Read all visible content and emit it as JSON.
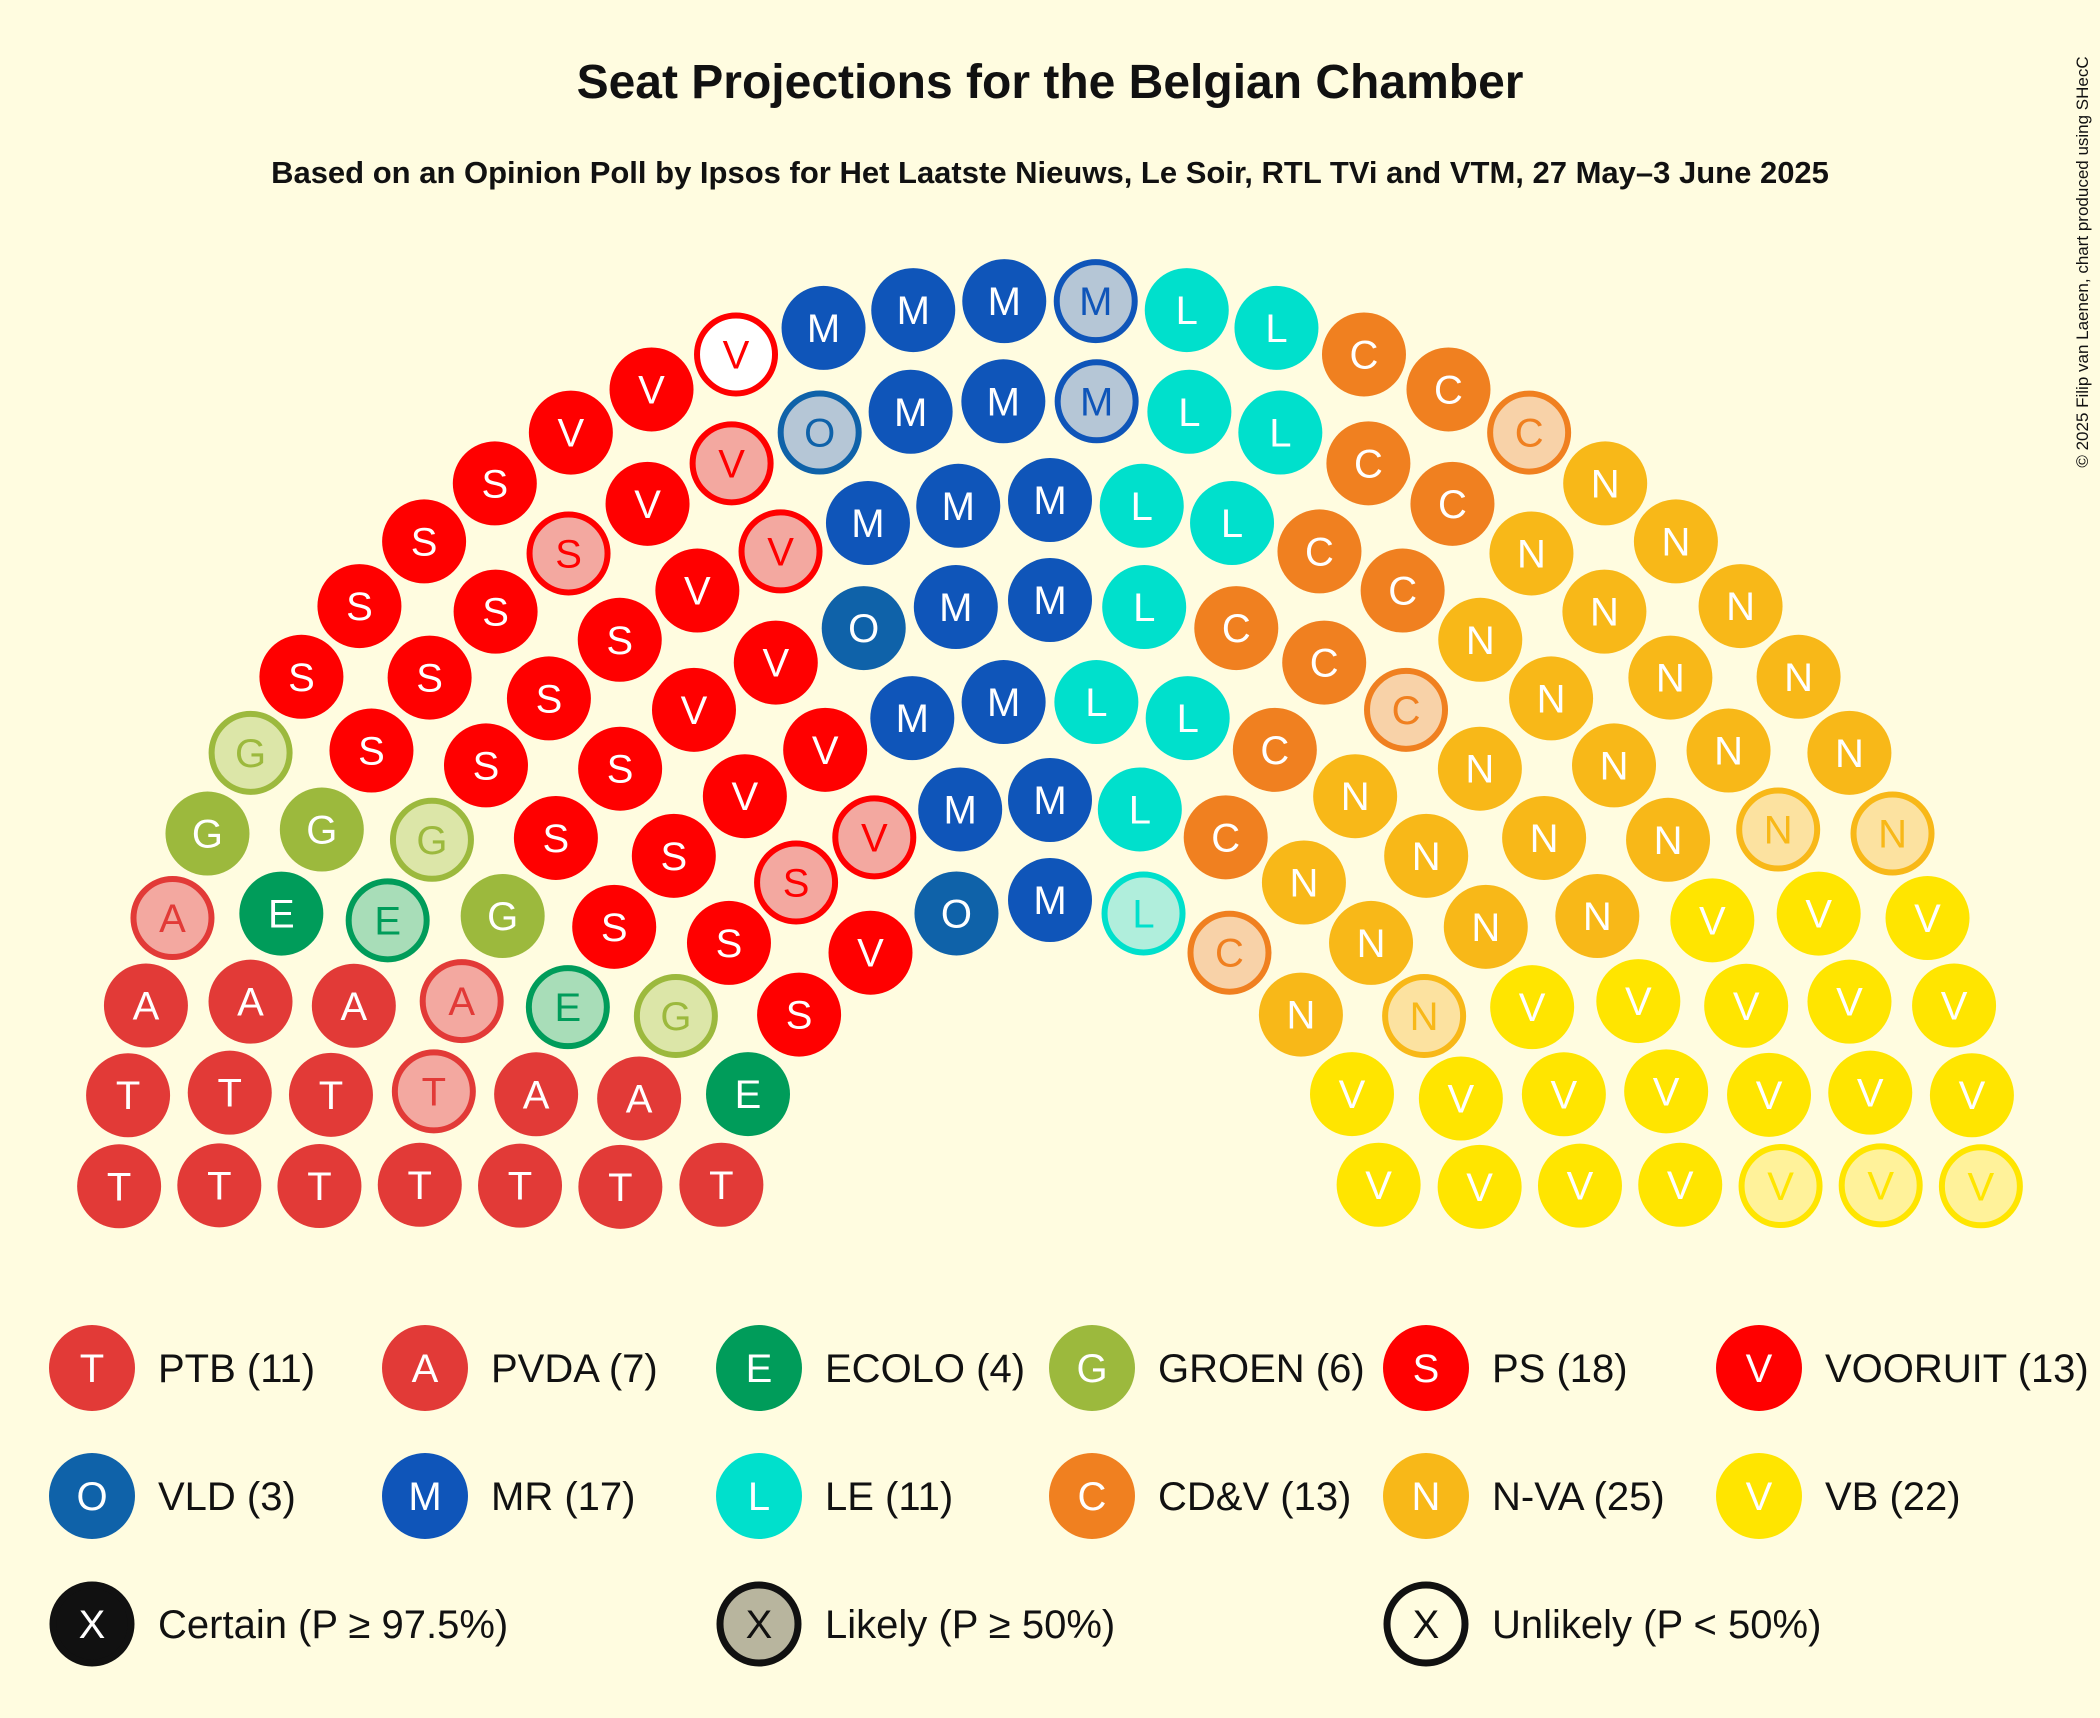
{
  "chart_data": {
    "type": "parliament",
    "title": "Seat Projections for the Belgian Chamber",
    "subtitle": "Based on an Opinion Poll by Ipsos for Het Laatste Nieuws, Le Soir, RTL TVi and VTM, 27 May–3 June 2025",
    "copyright": "© 2025 Filip van Laenen, chart produced using SHecC",
    "total_seats": 150,
    "parties": [
      {
        "name": "PTB",
        "letter": "T",
        "seats": 11,
        "color": "#E23A37",
        "light_color": "#F3A8A0",
        "certain": 10,
        "likely": 1,
        "unlikely": 0
      },
      {
        "name": "PVDA",
        "letter": "A",
        "seats": 7,
        "color": "#E23A37",
        "light_color": "#F3A8A0",
        "certain": 5,
        "likely": 2,
        "unlikely": 0
      },
      {
        "name": "ECOLO",
        "letter": "E",
        "seats": 4,
        "color": "#009C5A",
        "light_color": "#A8DDB8",
        "certain": 2,
        "likely": 2,
        "unlikely": 0
      },
      {
        "name": "GROEN",
        "letter": "G",
        "seats": 6,
        "color": "#9CB93D",
        "light_color": "#DCE6A8",
        "certain": 3,
        "likely": 3,
        "unlikely": 0
      },
      {
        "name": "PS",
        "letter": "S",
        "seats": 18,
        "color": "#FF0000",
        "light_color": "#F3A8A0",
        "certain": 16,
        "likely": 2,
        "unlikely": 0
      },
      {
        "name": "VOORUIT",
        "letter": "V",
        "seats": 13,
        "color": "#FF0000",
        "light_color": "#F3A8A0",
        "certain": 9,
        "likely": 3,
        "unlikely": 1
      },
      {
        "name": "VLD",
        "letter": "O",
        "seats": 3,
        "color": "#0F62A9",
        "light_color": "#B5C6D6",
        "certain": 2,
        "likely": 1,
        "unlikely": 0
      },
      {
        "name": "MR",
        "letter": "M",
        "seats": 17,
        "color": "#0F55B9",
        "light_color": "#B5C6D6",
        "certain": 15,
        "likely": 2,
        "unlikely": 0
      },
      {
        "name": "LE",
        "letter": "L",
        "seats": 11,
        "color": "#00E0CC",
        "light_color": "#B0EEDC",
        "certain": 10,
        "likely": 1,
        "unlikely": 0
      },
      {
        "name": "CD&V",
        "letter": "C",
        "seats": 13,
        "color": "#F08020",
        "light_color": "#F8D2A8",
        "certain": 10,
        "likely": 3,
        "unlikely": 0
      },
      {
        "name": "N-VA",
        "letter": "N",
        "seats": 25,
        "color": "#F8B818",
        "light_color": "#FCE2A0",
        "certain": 22,
        "likely": 3,
        "unlikely": 0
      },
      {
        "name": "VB",
        "letter": "V",
        "seats": 22,
        "color": "#FFE500",
        "light_color": "#FFF29A",
        "certain": 19,
        "likely": 3,
        "unlikely": 0
      }
    ],
    "status_legend": [
      {
        "letter": "X",
        "label": "Certain (P ≥ 97.5%)",
        "color": "#111111",
        "fill": "#111111",
        "text_color": "#FFFFFF"
      },
      {
        "letter": "X",
        "label": "Likely (P ≥ 50%)",
        "color": "#111111",
        "fill": "#B8B59E",
        "text_color": "#111111"
      },
      {
        "letter": "X",
        "label": "Unlikely (P < 50%)",
        "color": "#111111",
        "fill": "#FFFCE0",
        "text_color": "#111111"
      }
    ]
  }
}
